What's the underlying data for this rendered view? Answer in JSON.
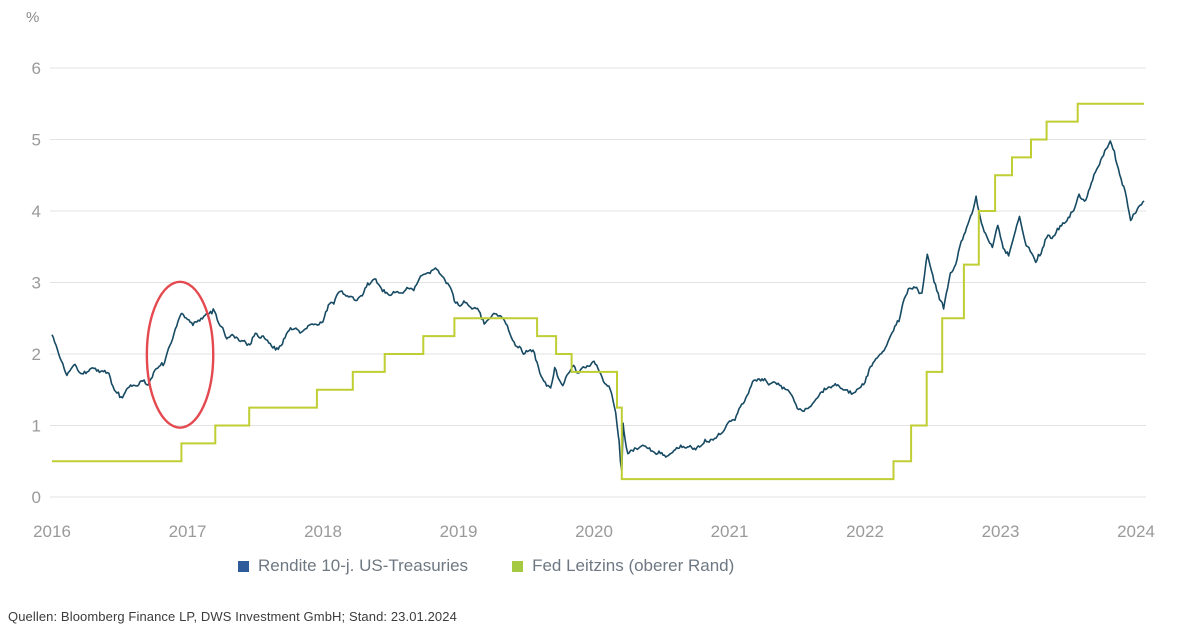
{
  "unit_label": "%",
  "source": {
    "text": "Quellen: Bloomberg Finance LP, DWS Investment GmbH; Stand: 23.01.2024"
  },
  "colors": {
    "grid": "#e3e3e3",
    "tick_text": "#9a9a9a",
    "treasury_line": "#174a63",
    "fed_line": "#bfce33",
    "legend_treasury": "#2e5b9a",
    "legend_fed": "#a5ca41",
    "annotation_red": "#e4494f",
    "legend_text": "#6e7882",
    "source_text": "#3c3c3c"
  },
  "chart_data": {
    "type": "line",
    "title": "",
    "xlabel": "",
    "ylabel": "%",
    "x_tick_labels": [
      "2016",
      "2017",
      "2018",
      "2019",
      "2020",
      "2021",
      "2022",
      "2023",
      "2024"
    ],
    "y_tick_labels": [
      "6",
      "5",
      "4",
      "3",
      "2",
      "1",
      "0"
    ],
    "y_ticks": [
      6,
      5,
      4,
      3,
      2,
      1,
      0
    ],
    "x_range": [
      2016,
      2024.06
    ],
    "ylim": [
      0,
      6
    ],
    "grid": "horizontal",
    "legend_position": "bottom",
    "annotation": {
      "shape": "ellipse",
      "center_year": 2016.945,
      "center_value": 1.99,
      "rx_years": 0.245,
      "ry_units": 1.02,
      "color": "#e4494f"
    },
    "series": [
      {
        "name": "Rendite 10-j. US-Treasuries",
        "style": "jagged-line",
        "color": "#174a63",
        "legend_color": "#2e5b9a",
        "points": [
          [
            2016.0,
            2.27
          ],
          [
            2016.03,
            2.12
          ],
          [
            2016.06,
            1.94
          ],
          [
            2016.11,
            1.72
          ],
          [
            2016.14,
            1.8
          ],
          [
            2016.17,
            1.9
          ],
          [
            2016.21,
            1.78
          ],
          [
            2016.25,
            1.76
          ],
          [
            2016.29,
            1.86
          ],
          [
            2016.33,
            1.82
          ],
          [
            2016.38,
            1.78
          ],
          [
            2016.42,
            1.7
          ],
          [
            2016.46,
            1.48
          ],
          [
            2016.52,
            1.38
          ],
          [
            2016.55,
            1.52
          ],
          [
            2016.58,
            1.56
          ],
          [
            2016.63,
            1.54
          ],
          [
            2016.67,
            1.62
          ],
          [
            2016.71,
            1.56
          ],
          [
            2016.75,
            1.76
          ],
          [
            2016.79,
            1.82
          ],
          [
            2016.83,
            1.84
          ],
          [
            2016.86,
            2.06
          ],
          [
            2016.89,
            2.22
          ],
          [
            2016.92,
            2.38
          ],
          [
            2016.955,
            2.56
          ],
          [
            2017.0,
            2.46
          ],
          [
            2017.04,
            2.4
          ],
          [
            2017.08,
            2.44
          ],
          [
            2017.13,
            2.5
          ],
          [
            2017.19,
            2.6
          ],
          [
            2017.25,
            2.38
          ],
          [
            2017.29,
            2.24
          ],
          [
            2017.33,
            2.3
          ],
          [
            2017.38,
            2.22
          ],
          [
            2017.42,
            2.2
          ],
          [
            2017.46,
            2.14
          ],
          [
            2017.5,
            2.32
          ],
          [
            2017.54,
            2.28
          ],
          [
            2017.58,
            2.22
          ],
          [
            2017.63,
            2.12
          ],
          [
            2017.67,
            2.06
          ],
          [
            2017.71,
            2.2
          ],
          [
            2017.75,
            2.34
          ],
          [
            2017.79,
            2.38
          ],
          [
            2017.83,
            2.32
          ],
          [
            2017.88,
            2.36
          ],
          [
            2017.92,
            2.42
          ],
          [
            2017.96,
            2.4
          ],
          [
            2018.0,
            2.46
          ],
          [
            2018.04,
            2.66
          ],
          [
            2018.08,
            2.72
          ],
          [
            2018.13,
            2.88
          ],
          [
            2018.17,
            2.86
          ],
          [
            2018.21,
            2.82
          ],
          [
            2018.25,
            2.74
          ],
          [
            2018.29,
            2.8
          ],
          [
            2018.33,
            2.96
          ],
          [
            2018.38,
            3.02
          ],
          [
            2018.42,
            2.92
          ],
          [
            2018.46,
            2.86
          ],
          [
            2018.5,
            2.84
          ],
          [
            2018.54,
            2.88
          ],
          [
            2018.58,
            2.86
          ],
          [
            2018.63,
            2.9
          ],
          [
            2018.67,
            2.88
          ],
          [
            2018.71,
            3.0
          ],
          [
            2018.75,
            3.08
          ],
          [
            2018.79,
            3.16
          ],
          [
            2018.83,
            3.22
          ],
          [
            2018.86,
            3.18
          ],
          [
            2018.9,
            3.06
          ],
          [
            2018.94,
            2.92
          ],
          [
            2018.98,
            2.72
          ],
          [
            2019.02,
            2.68
          ],
          [
            2019.06,
            2.7
          ],
          [
            2019.1,
            2.64
          ],
          [
            2019.15,
            2.62
          ],
          [
            2019.19,
            2.44
          ],
          [
            2019.23,
            2.5
          ],
          [
            2019.27,
            2.54
          ],
          [
            2019.31,
            2.48
          ],
          [
            2019.35,
            2.4
          ],
          [
            2019.4,
            2.14
          ],
          [
            2019.44,
            2.1
          ],
          [
            2019.48,
            2.02
          ],
          [
            2019.52,
            2.06
          ],
          [
            2019.56,
            2.02
          ],
          [
            2019.6,
            1.74
          ],
          [
            2019.64,
            1.56
          ],
          [
            2019.68,
            1.5
          ],
          [
            2019.71,
            1.74
          ],
          [
            2019.74,
            1.58
          ],
          [
            2019.77,
            1.54
          ],
          [
            2019.81,
            1.7
          ],
          [
            2019.85,
            1.84
          ],
          [
            2019.88,
            1.78
          ],
          [
            2019.92,
            1.84
          ],
          [
            2019.96,
            1.88
          ],
          [
            2020.0,
            1.9
          ],
          [
            2020.04,
            1.76
          ],
          [
            2020.08,
            1.58
          ],
          [
            2020.12,
            1.48
          ],
          [
            2020.16,
            1.15
          ],
          [
            2020.185,
            0.8
          ],
          [
            2020.195,
            0.5
          ],
          [
            2020.205,
            0.35
          ],
          [
            2020.215,
            1.02
          ],
          [
            2020.23,
            0.78
          ],
          [
            2020.25,
            0.62
          ],
          [
            2020.29,
            0.64
          ],
          [
            2020.33,
            0.66
          ],
          [
            2020.38,
            0.7
          ],
          [
            2020.42,
            0.66
          ],
          [
            2020.46,
            0.62
          ],
          [
            2020.5,
            0.58
          ],
          [
            2020.54,
            0.56
          ],
          [
            2020.58,
            0.64
          ],
          [
            2020.63,
            0.68
          ],
          [
            2020.67,
            0.66
          ],
          [
            2020.71,
            0.72
          ],
          [
            2020.75,
            0.7
          ],
          [
            2020.79,
            0.78
          ],
          [
            2020.83,
            0.84
          ],
          [
            2020.88,
            0.88
          ],
          [
            2020.92,
            0.92
          ],
          [
            2020.96,
            0.94
          ],
          [
            2021.0,
            1.08
          ],
          [
            2021.04,
            1.12
          ],
          [
            2021.08,
            1.26
          ],
          [
            2021.13,
            1.42
          ],
          [
            2021.17,
            1.6
          ],
          [
            2021.21,
            1.68
          ],
          [
            2021.25,
            1.64
          ],
          [
            2021.29,
            1.58
          ],
          [
            2021.33,
            1.62
          ],
          [
            2021.38,
            1.56
          ],
          [
            2021.42,
            1.5
          ],
          [
            2021.46,
            1.44
          ],
          [
            2021.5,
            1.3
          ],
          [
            2021.54,
            1.24
          ],
          [
            2021.58,
            1.28
          ],
          [
            2021.63,
            1.32
          ],
          [
            2021.67,
            1.38
          ],
          [
            2021.71,
            1.5
          ],
          [
            2021.75,
            1.56
          ],
          [
            2021.79,
            1.6
          ],
          [
            2021.83,
            1.56
          ],
          [
            2021.88,
            1.46
          ],
          [
            2021.92,
            1.42
          ],
          [
            2021.96,
            1.5
          ],
          [
            2022.0,
            1.62
          ],
          [
            2022.04,
            1.8
          ],
          [
            2022.08,
            1.94
          ],
          [
            2022.13,
            1.98
          ],
          [
            2022.17,
            2.14
          ],
          [
            2022.21,
            2.32
          ],
          [
            2022.25,
            2.46
          ],
          [
            2022.29,
            2.78
          ],
          [
            2022.33,
            2.92
          ],
          [
            2022.38,
            2.98
          ],
          [
            2022.42,
            2.86
          ],
          [
            2022.46,
            3.42
          ],
          [
            2022.5,
            3.08
          ],
          [
            2022.54,
            2.82
          ],
          [
            2022.58,
            2.66
          ],
          [
            2022.63,
            3.12
          ],
          [
            2022.67,
            3.26
          ],
          [
            2022.71,
            3.56
          ],
          [
            2022.75,
            3.82
          ],
          [
            2022.79,
            4.02
          ],
          [
            2022.82,
            4.18
          ],
          [
            2022.86,
            3.88
          ],
          [
            2022.9,
            3.68
          ],
          [
            2022.94,
            3.52
          ],
          [
            2022.98,
            3.82
          ],
          [
            2023.02,
            3.52
          ],
          [
            2023.06,
            3.42
          ],
          [
            2023.1,
            3.66
          ],
          [
            2023.14,
            3.94
          ],
          [
            2023.18,
            3.58
          ],
          [
            2023.22,
            3.48
          ],
          [
            2023.26,
            3.36
          ],
          [
            2023.3,
            3.44
          ],
          [
            2023.34,
            3.68
          ],
          [
            2023.38,
            3.64
          ],
          [
            2023.42,
            3.76
          ],
          [
            2023.46,
            3.84
          ],
          [
            2023.5,
            3.94
          ],
          [
            2023.54,
            4.02
          ],
          [
            2023.58,
            4.22
          ],
          [
            2023.62,
            4.12
          ],
          [
            2023.66,
            4.32
          ],
          [
            2023.7,
            4.58
          ],
          [
            2023.74,
            4.72
          ],
          [
            2023.78,
            4.88
          ],
          [
            2023.81,
            4.98
          ],
          [
            2023.84,
            4.84
          ],
          [
            2023.88,
            4.52
          ],
          [
            2023.92,
            4.28
          ],
          [
            2023.96,
            3.9
          ],
          [
            2024.0,
            3.96
          ],
          [
            2024.03,
            4.08
          ],
          [
            2024.06,
            4.14
          ]
        ]
      },
      {
        "name": "Fed Leitzins (oberer Rand)",
        "style": "step-line",
        "color": "#bfce33",
        "legend_color": "#a5ca41",
        "points": [
          [
            2016.0,
            0.5
          ],
          [
            2016.955,
            0.75
          ],
          [
            2017.205,
            1.0
          ],
          [
            2017.455,
            1.25
          ],
          [
            2017.955,
            1.5
          ],
          [
            2018.22,
            1.75
          ],
          [
            2018.455,
            2.0
          ],
          [
            2018.74,
            2.25
          ],
          [
            2018.97,
            2.5
          ],
          [
            2019.58,
            2.25
          ],
          [
            2019.72,
            2.0
          ],
          [
            2019.835,
            1.75
          ],
          [
            2020.17,
            1.25
          ],
          [
            2020.205,
            0.25
          ],
          [
            2022.21,
            0.5
          ],
          [
            2022.34,
            1.0
          ],
          [
            2022.455,
            1.75
          ],
          [
            2022.57,
            2.5
          ],
          [
            2022.73,
            3.25
          ],
          [
            2022.84,
            4.0
          ],
          [
            2022.96,
            4.5
          ],
          [
            2023.085,
            4.75
          ],
          [
            2023.225,
            5.0
          ],
          [
            2023.34,
            5.25
          ],
          [
            2023.57,
            5.5
          ],
          [
            2024.06,
            5.5
          ]
        ]
      }
    ]
  },
  "legend": {
    "items": [
      {
        "label": "Rendite 10-j. US-Treasuries"
      },
      {
        "label": "Fed Leitzins (oberer Rand)"
      }
    ]
  }
}
